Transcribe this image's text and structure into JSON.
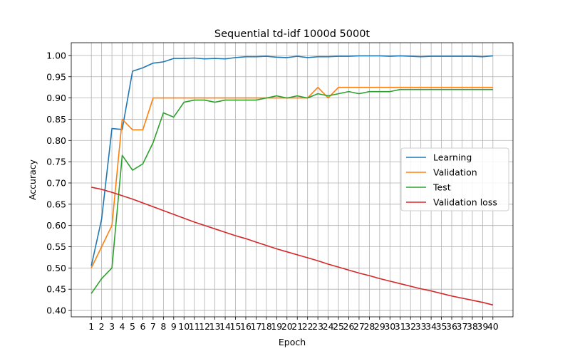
{
  "chart_data": {
    "type": "line",
    "title": "Sequential td-idf 1000d 5000t",
    "xlabel": "Epoch",
    "ylabel": "Accuracy",
    "x": [
      1,
      2,
      3,
      4,
      5,
      6,
      7,
      8,
      9,
      10,
      11,
      12,
      13,
      14,
      15,
      16,
      17,
      18,
      19,
      20,
      21,
      22,
      23,
      24,
      25,
      26,
      27,
      28,
      29,
      30,
      31,
      32,
      33,
      34,
      35,
      36,
      37,
      38,
      39,
      40
    ],
    "xticks": [
      1,
      2,
      3,
      4,
      5,
      6,
      7,
      8,
      9,
      10,
      11,
      12,
      13,
      14,
      15,
      16,
      17,
      18,
      19,
      20,
      21,
      22,
      23,
      24,
      25,
      26,
      27,
      28,
      29,
      30,
      31,
      32,
      33,
      34,
      35,
      36,
      37,
      38,
      39,
      40
    ],
    "ylim": [
      0.385,
      1.03
    ],
    "yticks": [
      0.4,
      0.45,
      0.5,
      0.55,
      0.6,
      0.65,
      0.7,
      0.75,
      0.8,
      0.85,
      0.9,
      0.95,
      1.0
    ],
    "ytick_labels": [
      "0.40",
      "0.45",
      "0.50",
      "0.55",
      "0.60",
      "0.65",
      "0.70",
      "0.75",
      "0.80",
      "0.85",
      "0.90",
      "0.95",
      "1.00"
    ],
    "grid": true,
    "legend_position": "center-right",
    "series": [
      {
        "name": "Learning",
        "color": "#1f77b4",
        "values": [
          0.505,
          0.615,
          0.828,
          0.826,
          0.963,
          0.971,
          0.982,
          0.985,
          0.993,
          0.993,
          0.994,
          0.992,
          0.993,
          0.992,
          0.995,
          0.997,
          0.997,
          0.998,
          0.996,
          0.995,
          0.998,
          0.995,
          0.997,
          0.997,
          0.998,
          0.998,
          0.999,
          0.999,
          0.999,
          0.998,
          0.999,
          0.998,
          0.997,
          0.998,
          0.998,
          0.998,
          0.998,
          0.998,
          0.997,
          0.999
        ]
      },
      {
        "name": "Validation",
        "color": "#ff7f0e",
        "values": [
          0.5,
          0.55,
          0.6,
          0.85,
          0.825,
          0.825,
          0.9,
          0.9,
          0.9,
          0.9,
          0.9,
          0.9,
          0.9,
          0.9,
          0.9,
          0.9,
          0.9,
          0.9,
          0.9,
          0.9,
          0.9,
          0.9,
          0.925,
          0.9,
          0.925,
          0.925,
          0.925,
          0.925,
          0.925,
          0.925,
          0.925,
          0.925,
          0.925,
          0.925,
          0.925,
          0.925,
          0.925,
          0.925,
          0.925,
          0.925
        ]
      },
      {
        "name": "Test",
        "color": "#2ca02c",
        "values": [
          0.44,
          0.475,
          0.5,
          0.765,
          0.73,
          0.745,
          0.795,
          0.865,
          0.855,
          0.89,
          0.895,
          0.895,
          0.89,
          0.895,
          0.895,
          0.895,
          0.895,
          0.9,
          0.905,
          0.9,
          0.905,
          0.9,
          0.91,
          0.905,
          0.91,
          0.915,
          0.91,
          0.915,
          0.915,
          0.915,
          0.92,
          0.92,
          0.92,
          0.92,
          0.92,
          0.92,
          0.92,
          0.92,
          0.92,
          0.92
        ]
      },
      {
        "name": "Validation loss",
        "color": "#d62728",
        "values": [
          0.69,
          0.685,
          0.678,
          0.67,
          0.662,
          0.653,
          0.644,
          0.635,
          0.626,
          0.617,
          0.608,
          0.6,
          0.592,
          0.584,
          0.576,
          0.569,
          0.561,
          0.553,
          0.545,
          0.538,
          0.531,
          0.524,
          0.517,
          0.509,
          0.502,
          0.495,
          0.488,
          0.482,
          0.475,
          0.469,
          0.463,
          0.457,
          0.451,
          0.446,
          0.44,
          0.434,
          0.429,
          0.424,
          0.419,
          0.413
        ]
      }
    ]
  }
}
